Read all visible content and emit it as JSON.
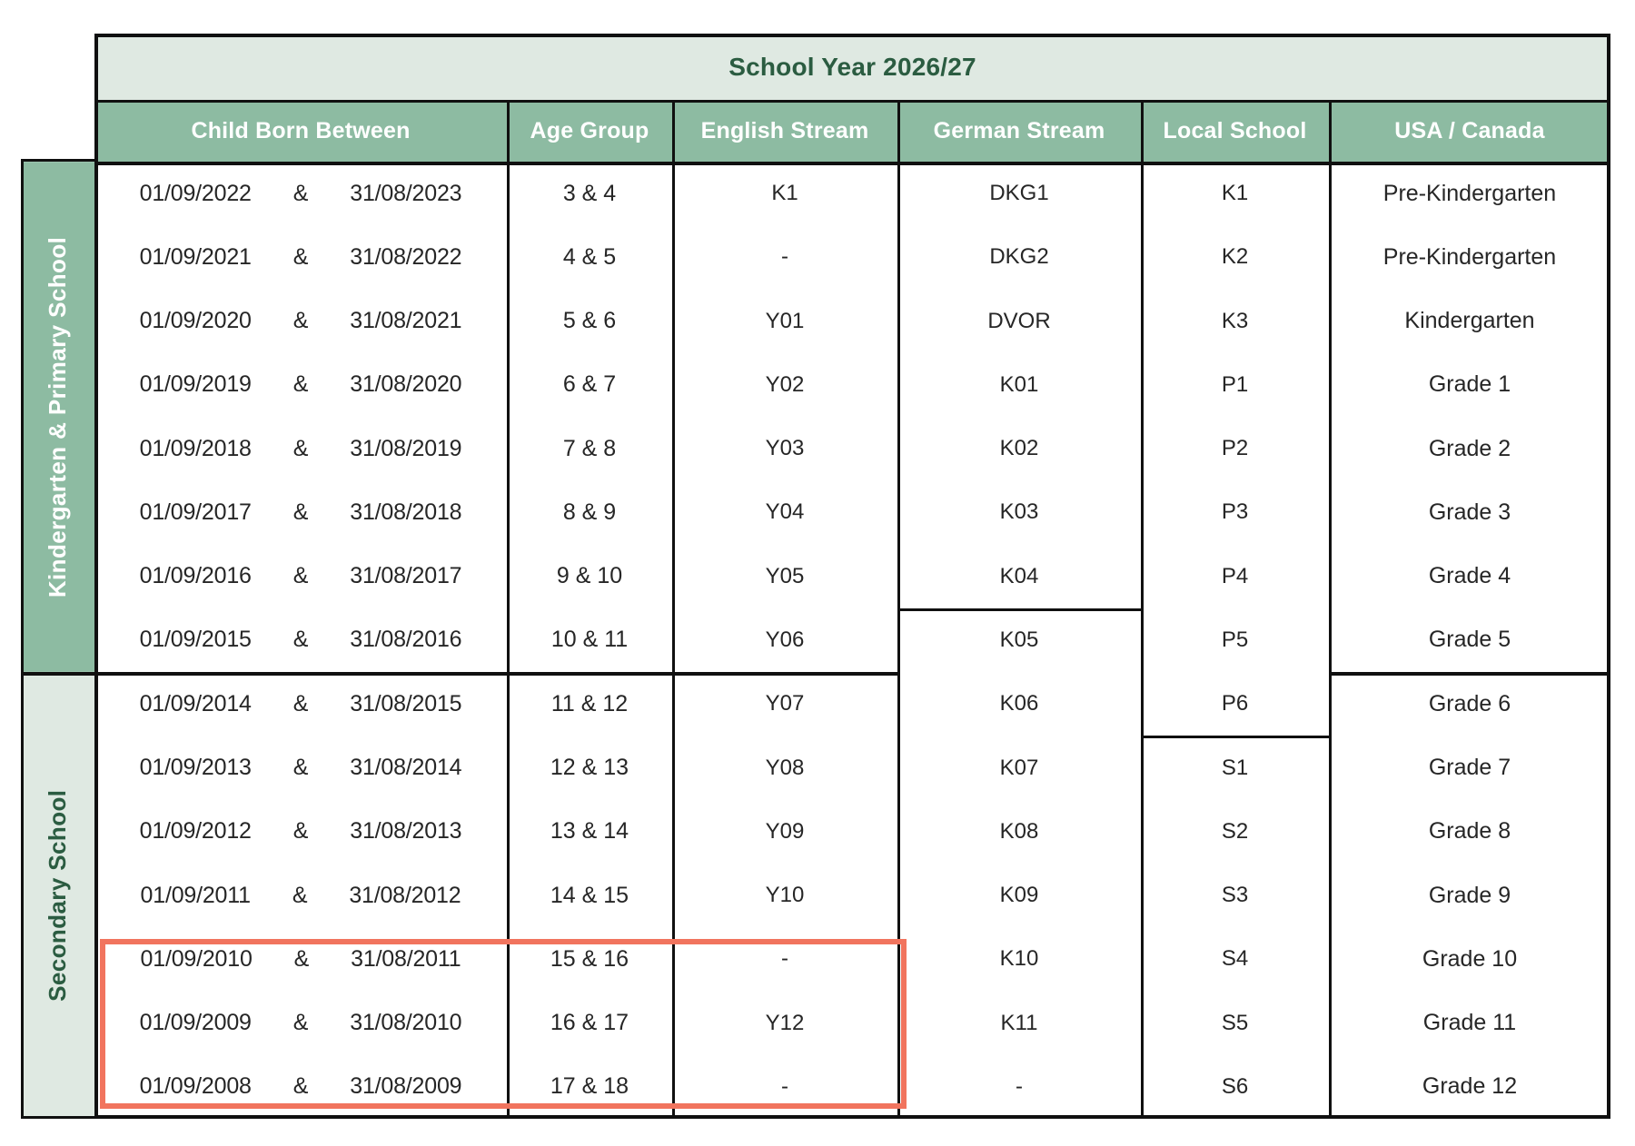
{
  "title": "School Year 2026/27",
  "columns": [
    "Child Born Between",
    "Age Group",
    "English Stream",
    "German Stream",
    "Local School",
    "USA / Canada"
  ],
  "sections": [
    {
      "label": "Kindergarten & Primary School",
      "rows": "1-8"
    },
    {
      "label": "Secondary School",
      "rows": "9-15"
    }
  ],
  "born_separator": "&",
  "rows": [
    {
      "born_start": "01/09/2022",
      "born_end": "31/08/2023",
      "age_group": "3 & 4",
      "english_stream": "K1",
      "german_stream": "DKG1",
      "local_school": "K1",
      "usa_canada": "Pre-Kindergarten"
    },
    {
      "born_start": "01/09/2021",
      "born_end": "31/08/2022",
      "age_group": "4 & 5",
      "english_stream": "-",
      "german_stream": "DKG2",
      "local_school": "K2",
      "usa_canada": "Pre-Kindergarten"
    },
    {
      "born_start": "01/09/2020",
      "born_end": "31/08/2021",
      "age_group": "5 & 6",
      "english_stream": "Y01",
      "german_stream": "DVOR",
      "local_school": "K3",
      "usa_canada": "Kindergarten"
    },
    {
      "born_start": "01/09/2019",
      "born_end": "31/08/2020",
      "age_group": "6 & 7",
      "english_stream": "Y02",
      "german_stream": "K01",
      "local_school": "P1",
      "usa_canada": "Grade 1"
    },
    {
      "born_start": "01/09/2018",
      "born_end": "31/08/2019",
      "age_group": "7 & 8",
      "english_stream": "Y03",
      "german_stream": "K02",
      "local_school": "P2",
      "usa_canada": "Grade 2"
    },
    {
      "born_start": "01/09/2017",
      "born_end": "31/08/2018",
      "age_group": "8 & 9",
      "english_stream": "Y04",
      "german_stream": "K03",
      "local_school": "P3",
      "usa_canada": "Grade 3"
    },
    {
      "born_start": "01/09/2016",
      "born_end": "31/08/2017",
      "age_group": "9 & 10",
      "english_stream": "Y05",
      "german_stream": "K04",
      "local_school": "P4",
      "usa_canada": "Grade 4"
    },
    {
      "born_start": "01/09/2015",
      "born_end": "31/08/2016",
      "age_group": "10 & 11",
      "english_stream": "Y06",
      "german_stream": "K05",
      "local_school": "P5",
      "usa_canada": "Grade 5"
    },
    {
      "born_start": "01/09/2014",
      "born_end": "31/08/2015",
      "age_group": "11 & 12",
      "english_stream": "Y07",
      "german_stream": "K06",
      "local_school": "P6",
      "usa_canada": "Grade 6"
    },
    {
      "born_start": "01/09/2013",
      "born_end": "31/08/2014",
      "age_group": "12 & 13",
      "english_stream": "Y08",
      "german_stream": "K07",
      "local_school": "S1",
      "usa_canada": "Grade 7"
    },
    {
      "born_start": "01/09/2012",
      "born_end": "31/08/2013",
      "age_group": "13 & 14",
      "english_stream": "Y09",
      "german_stream": "K08",
      "local_school": "S2",
      "usa_canada": "Grade 8"
    },
    {
      "born_start": "01/09/2011",
      "born_end": "31/08/2012",
      "age_group": "14 & 15",
      "english_stream": "Y10",
      "german_stream": "K09",
      "local_school": "S3",
      "usa_canada": "Grade 9"
    },
    {
      "born_start": "01/09/2010",
      "born_end": "31/08/2011",
      "age_group": "15 & 16",
      "english_stream": "-",
      "german_stream": "K10",
      "local_school": "S4",
      "usa_canada": "Grade 10"
    },
    {
      "born_start": "01/09/2009",
      "born_end": "31/08/2010",
      "age_group": "16 & 17",
      "english_stream": "Y12",
      "german_stream": "K11",
      "local_school": "S5",
      "usa_canada": "Grade 11"
    },
    {
      "born_start": "01/09/2008",
      "born_end": "31/08/2009",
      "age_group": "17 & 18",
      "english_stream": "-",
      "german_stream": "-",
      "local_school": "S6",
      "usa_canada": "Grade 12"
    }
  ],
  "highlight": {
    "description": "red box around last three rows of Child Born Between, Age Group and English Stream columns",
    "first_row_index": 12,
    "last_row_index": 14,
    "color": "#f1745e"
  },
  "colors": {
    "header_green": "#8dbba2",
    "light_green": "#dfe9e2",
    "dark_green_text": "#2b5c41",
    "grid_line": "#101010",
    "highlight_red": "#f1745e",
    "body_text": "#262626"
  }
}
